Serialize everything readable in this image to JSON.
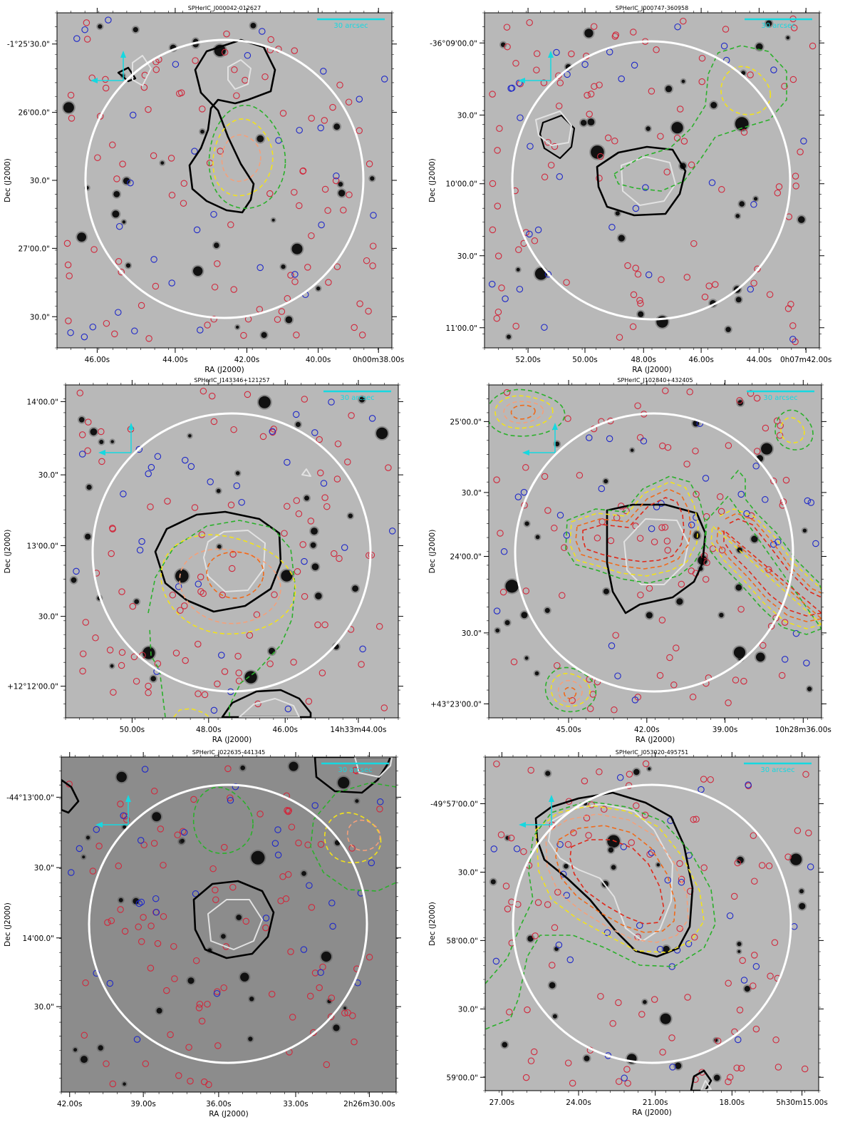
{
  "figure": {
    "colors": {
      "background_light": "#b8b8b8",
      "background_dark": "#8c8c8c",
      "search_circle": "#ffffff",
      "red_source": "#d0283c",
      "blue_source": "#1e28c8",
      "contour_black": "#000000",
      "contour_white": "#e2e2e2",
      "contour_green": "#2bb02b",
      "contour_yellow": "#f2e21a",
      "contour_salmon": "#f4a07a",
      "contour_orange": "#f06a1a",
      "contour_red": "#e0281a",
      "compass": "#16d8e0",
      "scalebar": "#16d8e0"
    },
    "panels": [
      {
        "title": "SPHerIC_J000042-012627",
        "ylabel": "Dec (J2000)",
        "xlabel": "RA (J2000)",
        "yticks": [
          "-1°25'30.0\"",
          "26'00.0\"",
          "30.0\"",
          "27'00.0\"",
          "30.0\""
        ],
        "xticks": [
          "46.00s",
          "44.00s",
          "42.00s",
          "40.00s",
          "0h00m38.00s"
        ],
        "scalebar_label": "30 arcsec",
        "background": "light"
      },
      {
        "title": "SPHerIC_J000747-360958",
        "ylabel": "Dec (J2000)",
        "xlabel": "RA (J2000)",
        "yticks": [
          "-36°09'00.0\"",
          "30.0\"",
          "10'00.0\"",
          "30.0\"",
          "11'00.0\""
        ],
        "xticks": [
          "52.00s",
          "50.00s",
          "48.00s",
          "46.00s",
          "44.00s",
          "0h07m42.00s"
        ],
        "scalebar_label": "30 arcsec",
        "background": "light"
      },
      {
        "title": "SPHerIC_J143346+121257",
        "ylabel": "Dec (J2000)",
        "xlabel": "RA (J2000)",
        "yticks": [
          "14'00.0\"",
          "30.0\"",
          "13'00.0\"",
          "30.0\"",
          "+12°12'00.0\""
        ],
        "xticks": [
          "50.00s",
          "48.00s",
          "46.00s",
          "14h33m44.00s"
        ],
        "scalebar_label": "30 arcsec",
        "background": "light"
      },
      {
        "title": "SPHerIC_J102840+432405",
        "ylabel": "Dec (J2000)",
        "xlabel": "RA (J2000)",
        "yticks": [
          "25'00.0\"",
          "30.0\"",
          "24'00.0\"",
          "30.0\"",
          "+43°23'00.0\""
        ],
        "xticks": [
          "45.00s",
          "42.00s",
          "39.00s",
          "10h28m36.00s"
        ],
        "scalebar_label": "30 arcsec",
        "background": "light"
      },
      {
        "title": "SPHerIC_J022635-441345",
        "ylabel": "Dec (J2000)",
        "xlabel": "RA (J2000)",
        "yticks": [
          "-44°13'00.0\"",
          "30.0\"",
          "14'00.0\"",
          "30.0\""
        ],
        "xticks": [
          "42.00s",
          "39.00s",
          "36.00s",
          "33.00s",
          "2h26m30.00s"
        ],
        "scalebar_label": "30 arcsec",
        "background": "dark"
      },
      {
        "title": "SPHerIC_J053020-495751",
        "ylabel": "Dec (J2000)",
        "xlabel": "RA (J2000)",
        "yticks": [
          "-49°57'00.0\"",
          "30.0\"",
          "58'00.0\"",
          "30.0\"",
          "59'00.0\""
        ],
        "xticks": [
          "27.00s",
          "24.00s",
          "21.00s",
          "18.00s",
          "5h30m15.00s"
        ],
        "scalebar_label": "30 arcsec",
        "background": "light"
      }
    ]
  }
}
